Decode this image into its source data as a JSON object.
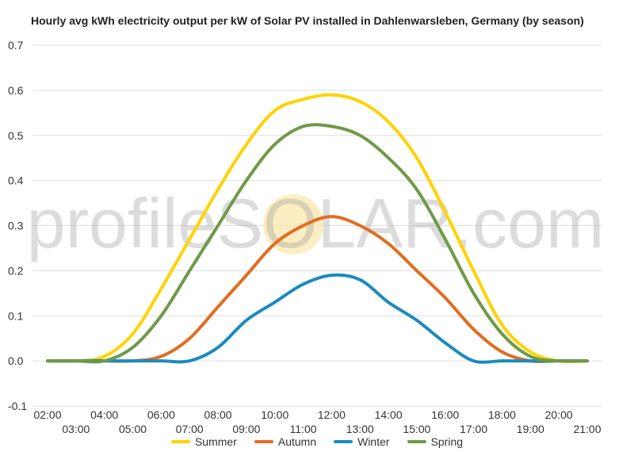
{
  "chart_data": {
    "type": "line",
    "title": "Hourly avg kWh electricity output per kW of Solar PV installed in Dahlenwarsleben, Germany (by season)",
    "watermark": "profileSOLAR.com",
    "xlabel": "",
    "ylabel": "",
    "ylim": [
      -0.1,
      0.7
    ],
    "yticks": [
      "-0.1",
      "0.0",
      "0.1",
      "0.2",
      "0.3",
      "0.4",
      "0.5",
      "0.6",
      "0.7"
    ],
    "categories": [
      "02:00",
      "03:00",
      "04:00",
      "05:00",
      "06:00",
      "07:00",
      "08:00",
      "09:00",
      "10:00",
      "11:00",
      "12:00",
      "13:00",
      "14:00",
      "15:00",
      "16:00",
      "17:00",
      "18:00",
      "19:00",
      "20:00",
      "21:00"
    ],
    "legend_position": "bottom",
    "grid": true,
    "series": [
      {
        "name": "Summer",
        "color": "#FFD200",
        "values": [
          0.0,
          0.0,
          0.01,
          0.06,
          0.16,
          0.27,
          0.38,
          0.48,
          0.555,
          0.58,
          0.59,
          0.575,
          0.53,
          0.45,
          0.33,
          0.2,
          0.08,
          0.02,
          0.0,
          0.0
        ]
      },
      {
        "name": "Autumn",
        "color": "#E36C1F",
        "values": [
          0.0,
          0.0,
          0.0,
          0.0,
          0.01,
          0.05,
          0.12,
          0.19,
          0.26,
          0.3,
          0.32,
          0.3,
          0.26,
          0.2,
          0.14,
          0.07,
          0.02,
          0.0,
          0.0,
          0.0
        ]
      },
      {
        "name": "Winter",
        "color": "#1A8BBF",
        "values": [
          0.0,
          0.0,
          0.0,
          0.0,
          0.0,
          0.0,
          0.03,
          0.09,
          0.13,
          0.17,
          0.19,
          0.18,
          0.13,
          0.09,
          0.04,
          0.0,
          0.0,
          0.0,
          0.0,
          0.0
        ]
      },
      {
        "name": "Spring",
        "color": "#6E9A47",
        "values": [
          0.0,
          0.0,
          0.0,
          0.03,
          0.1,
          0.2,
          0.3,
          0.4,
          0.48,
          0.52,
          0.52,
          0.5,
          0.45,
          0.38,
          0.27,
          0.15,
          0.06,
          0.01,
          0.0,
          0.0
        ]
      }
    ]
  }
}
